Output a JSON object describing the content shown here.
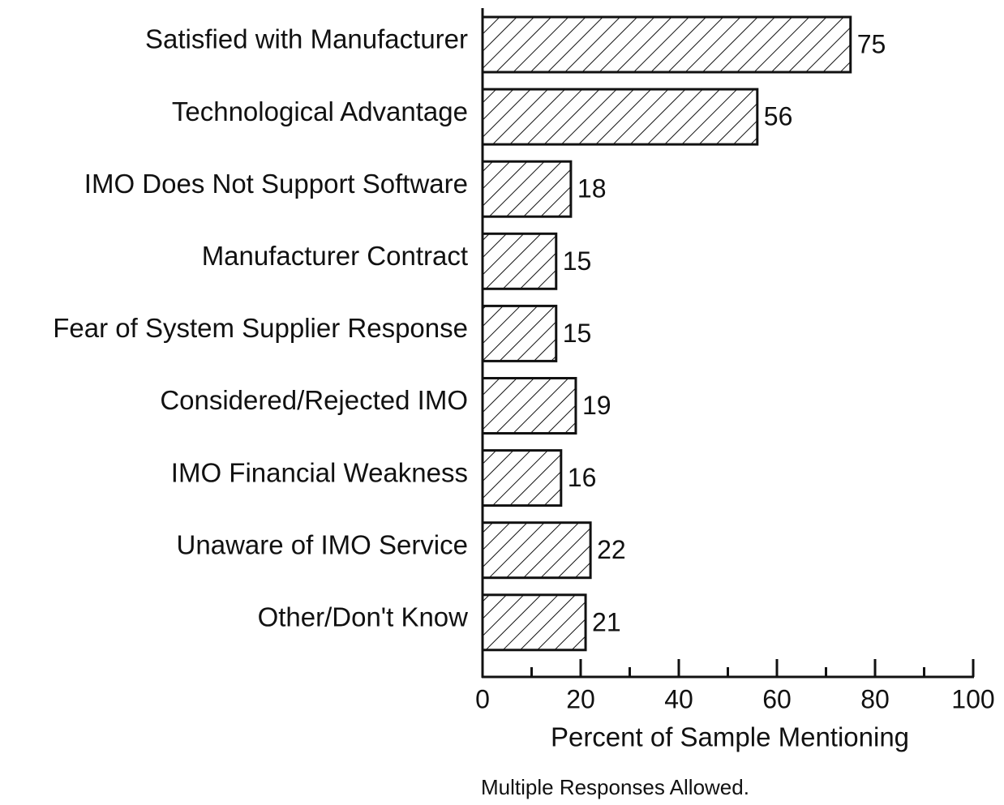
{
  "chart_data": {
    "type": "bar",
    "orientation": "horizontal",
    "categories": [
      "Satisfied with Manufacturer",
      "Technological Advantage",
      "IMO Does Not Support Software",
      "Manufacturer Contract",
      "Fear of System Supplier Response",
      "Considered/Rejected IMO",
      "IMO Financial Weakness",
      "Unaware of IMO Service",
      "Other/Don't Know"
    ],
    "values": [
      75,
      56,
      18,
      15,
      15,
      19,
      16,
      22,
      21
    ],
    "color": "#111111",
    "xlim": [
      0,
      100
    ],
    "xticks": [
      0,
      20,
      40,
      60,
      80,
      100
    ],
    "xticks_minor": [
      10,
      30,
      50,
      70,
      90
    ],
    "xlabel": "Percent of Sample Mentioning",
    "note": "Multiple Responses Allowed."
  }
}
